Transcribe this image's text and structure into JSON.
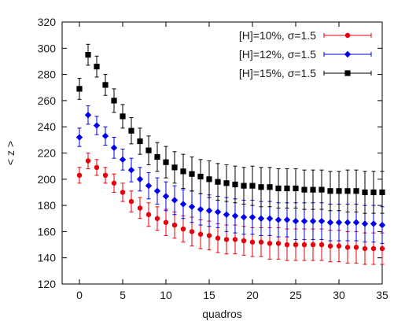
{
  "chart_data": {
    "type": "scatter",
    "title": "",
    "xlabel": "quadros",
    "ylabel": "< z >",
    "xlim": [
      -2,
      35
    ],
    "ylim": [
      120,
      320
    ],
    "xticks": [
      0,
      5,
      10,
      15,
      20,
      25,
      30,
      35
    ],
    "yticks": [
      120,
      140,
      160,
      180,
      200,
      220,
      240,
      260,
      280,
      300,
      320
    ],
    "grid": false,
    "legend_position": "top-right",
    "x": [
      0,
      1,
      2,
      3,
      4,
      5,
      6,
      7,
      8,
      9,
      10,
      11,
      12,
      13,
      14,
      15,
      16,
      17,
      18,
      19,
      20,
      21,
      22,
      23,
      24,
      25,
      26,
      27,
      28,
      29,
      30,
      31,
      32,
      33,
      34,
      35
    ],
    "series": [
      {
        "name": "[H]=10%, σ=1.5",
        "color": "#e8000b",
        "marker": "circle",
        "values": [
          203,
          214,
          209,
          203,
          197,
          190,
          183,
          178,
          173,
          170,
          167,
          165,
          162,
          160,
          158,
          157,
          155,
          154,
          154,
          153,
          152,
          152,
          151,
          151,
          150,
          150,
          150,
          150,
          150,
          149,
          149,
          148,
          148,
          147,
          147,
          147
        ],
        "errors": [
          6,
          6,
          6,
          6,
          7,
          7,
          8,
          8,
          9,
          9,
          10,
          10,
          10,
          11,
          11,
          11,
          11,
          11,
          11,
          11,
          11,
          11,
          12,
          12,
          12,
          12,
          12,
          12,
          12,
          12,
          12,
          12,
          12,
          12,
          12,
          12
        ]
      },
      {
        "name": "[H]=12%, σ=1.5",
        "color": "#0000ee",
        "marker": "diamond",
        "values": [
          232,
          249,
          241,
          233,
          224,
          215,
          207,
          200,
          195,
          191,
          187,
          184,
          181,
          179,
          177,
          176,
          175,
          173,
          172,
          171,
          171,
          170,
          170,
          169,
          169,
          168,
          168,
          168,
          168,
          167,
          167,
          167,
          167,
          166,
          166,
          165
        ],
        "errors": [
          7,
          7,
          7,
          7,
          8,
          8,
          9,
          9,
          10,
          10,
          11,
          11,
          11,
          12,
          12,
          12,
          12,
          13,
          13,
          13,
          13,
          13,
          13,
          13,
          13,
          14,
          14,
          14,
          14,
          14,
          14,
          14,
          14,
          14,
          14,
          14
        ]
      },
      {
        "name": "[H]=15%, σ=1.5",
        "color": "#000000",
        "marker": "square",
        "values": [
          269,
          295,
          286,
          272,
          260,
          248,
          237,
          229,
          222,
          217,
          213,
          209,
          206,
          204,
          202,
          200,
          198,
          197,
          196,
          195,
          195,
          194,
          194,
          193,
          193,
          193,
          192,
          192,
          192,
          191,
          191,
          191,
          191,
          190,
          190,
          190
        ],
        "errors": [
          8,
          8,
          8,
          8,
          9,
          9,
          10,
          10,
          11,
          11,
          12,
          12,
          13,
          13,
          13,
          14,
          14,
          14,
          14,
          14,
          15,
          15,
          15,
          15,
          15,
          15,
          15,
          15,
          15,
          15,
          15,
          16,
          16,
          16,
          16,
          16
        ]
      }
    ]
  }
}
